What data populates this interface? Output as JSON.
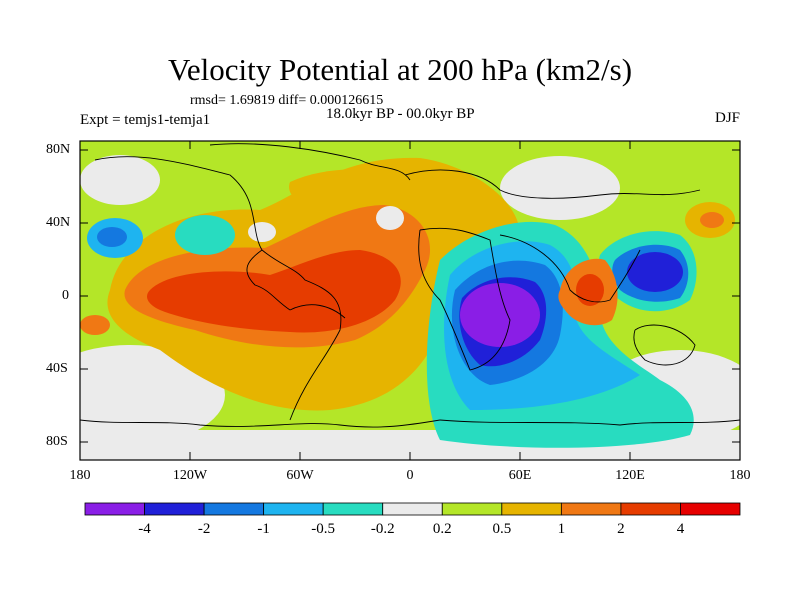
{
  "title": "Velocity Potential at 200 hPa (km2/s)",
  "stats": "rmsd= 1.69819 diff= 0.000126615",
  "experiment": "Expt = temjs1-temja1",
  "period": "18.0kyr BP - 00.0kyr BP",
  "season": "DJF",
  "lat_labels": [
    "80N",
    "40N",
    "0",
    "40S",
    "80S"
  ],
  "lon_labels": [
    "180",
    "120W",
    "60W",
    "0",
    "60E",
    "120E",
    "180"
  ],
  "colorbar": {
    "labels": [
      "-4",
      "-2",
      "-1",
      "-0.5",
      "-0.2",
      "0.2",
      "0.5",
      "1",
      "2",
      "4"
    ],
    "colors": [
      "#8a1ee6",
      "#2020d8",
      "#1478e0",
      "#1eb4f0",
      "#28dcc0",
      "#ebebeb",
      "#b4e628",
      "#e6b400",
      "#f07814",
      "#e63c00",
      "#e60000"
    ]
  }
}
